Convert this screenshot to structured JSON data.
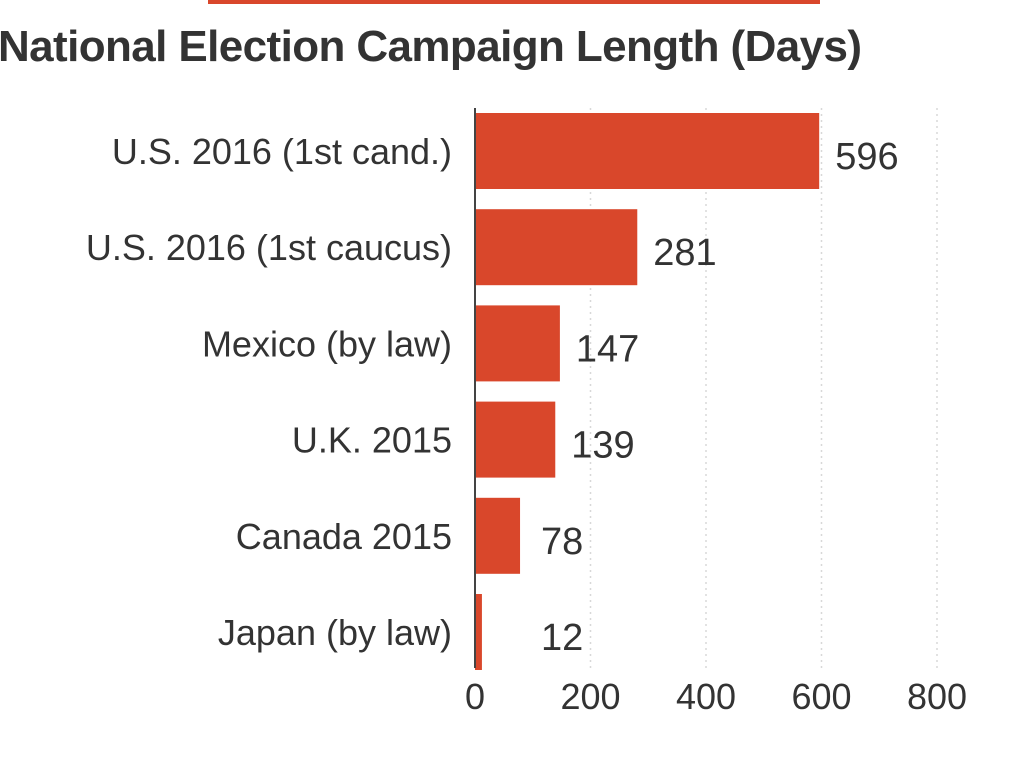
{
  "chart_data": {
    "type": "bar",
    "orientation": "horizontal",
    "title": "National Election Campaign Length (Days)",
    "categories": [
      "U.S. 2016 (1st cand.)",
      "U.S. 2016 (1st caucus)",
      "Mexico (by law)",
      "U.K. 2015",
      "Canada 2015",
      "Japan (by law)"
    ],
    "values": [
      596,
      281,
      147,
      139,
      78,
      12
    ],
    "data_labels": [
      "596",
      "281",
      "147",
      "139",
      "78",
      "12"
    ],
    "xlim": [
      0,
      800
    ],
    "xticks": [
      "0",
      "200",
      "400",
      "600",
      "800"
    ],
    "xlabel": "",
    "ylabel": "",
    "grid": "vertical dotted",
    "legend": "none",
    "bar_color": "#d9472b",
    "grid_color": "#d8d8d8",
    "text_color": "#333333"
  }
}
